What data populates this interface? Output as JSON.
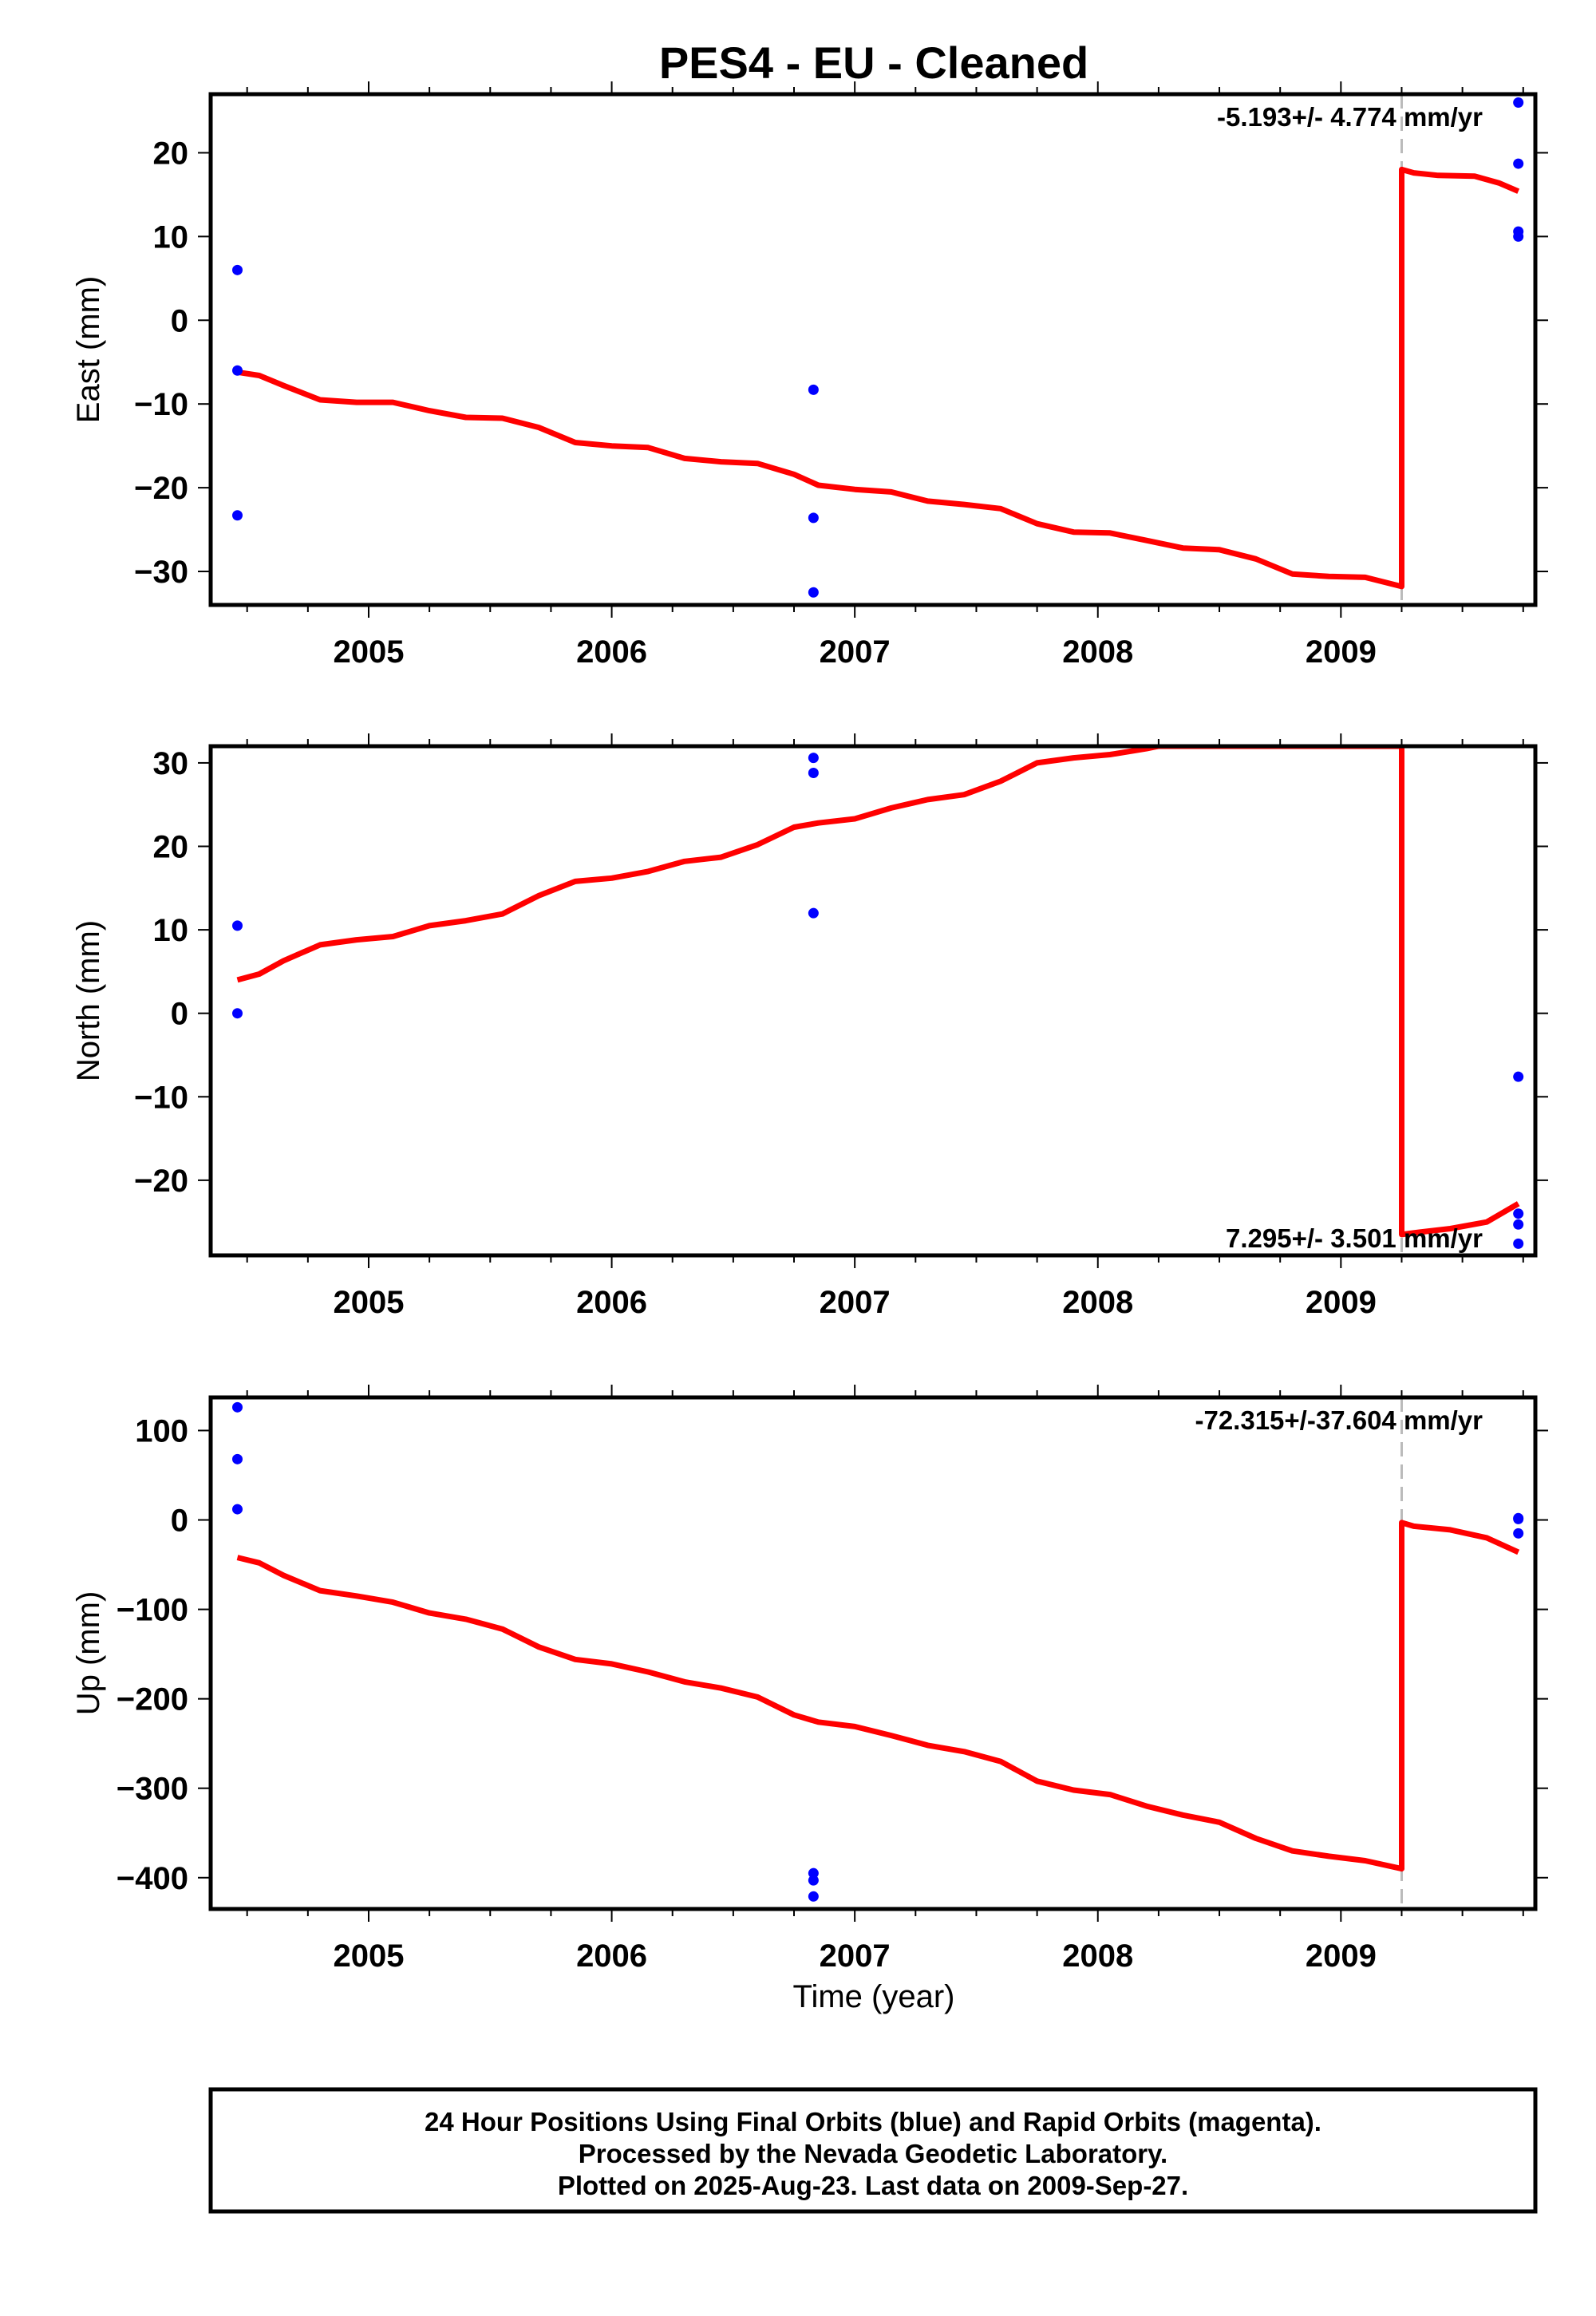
{
  "page": {
    "title": "PES4  - EU - Cleaned",
    "xlabel": "Time (year)",
    "footer": [
      "24 Hour Positions Using Final Orbits (blue) and Rapid Orbits (magenta).",
      "Processed by the Nevada Geodetic Laboratory.",
      "Plotted on 2025-Aug-23. Last data on 2009-Sep-27."
    ]
  },
  "colors": {
    "final_orbits": "#0000ff",
    "model": "#ff0000",
    "step_marker": "#bbbbbb",
    "axes": "#000000"
  },
  "chart_data": [
    {
      "type": "scatter",
      "ylabel": "East (mm)",
      "rate_label": "-5.193+/- 4.774 mm/yr",
      "rate_position": "top-right",
      "xlim": [
        2004.35,
        2009.8
      ],
      "ylim": [
        -34,
        27
      ],
      "x_ticks": [
        2005,
        2006,
        2007,
        2008,
        2009
      ],
      "y_ticks": [
        20,
        10,
        0,
        -10,
        -20,
        -30
      ],
      "step_epoch": 2009.25,
      "points": {
        "x": [
          2004.46,
          2004.46,
          2004.46,
          2006.83,
          2006.83,
          2006.83,
          2009.73,
          2009.73,
          2009.73,
          2009.73
        ],
        "y": [
          6,
          -6,
          -23.3,
          -8.3,
          -23.6,
          -32.5,
          26,
          18.7,
          10.6,
          10
        ]
      },
      "model": {
        "x": [
          2004.46,
          2004.55,
          2004.65,
          2004.8,
          2004.95,
          2005.1,
          2005.25,
          2005.4,
          2005.55,
          2005.7,
          2005.85,
          2006.0,
          2006.15,
          2006.3,
          2006.45,
          2006.6,
          2006.75,
          2006.85,
          2007.0,
          2007.15,
          2007.3,
          2007.45,
          2007.6,
          2007.75,
          2007.9,
          2008.05,
          2008.2,
          2008.35,
          2008.5,
          2008.65,
          2008.8,
          2008.95,
          2009.1,
          2009.25,
          2009.25,
          2009.3,
          2009.4,
          2009.55,
          2009.65,
          2009.73
        ],
        "y": [
          -6.2,
          -6.6,
          -7.8,
          -9.5,
          -9.8,
          -9.8,
          -10.8,
          -11.6,
          -11.7,
          -12.8,
          -14.6,
          -15.0,
          -15.2,
          -16.5,
          -16.9,
          -17.1,
          -18.4,
          -19.7,
          -20.2,
          -20.5,
          -21.6,
          -22.0,
          -22.5,
          -24.3,
          -25.3,
          -25.4,
          -26.3,
          -27.2,
          -27.4,
          -28.5,
          -30.3,
          -30.6,
          -30.7,
          -31.8,
          18.0,
          17.6,
          17.3,
          17.2,
          16.4,
          15.4
        ]
      }
    },
    {
      "type": "scatter",
      "ylabel": "North (mm)",
      "rate_label": "7.295+/- 3.501 mm/yr",
      "rate_position": "bottom-right",
      "xlim": [
        2004.35,
        2009.8
      ],
      "ylim": [
        -29,
        32
      ],
      "x_ticks": [
        2005,
        2006,
        2007,
        2008,
        2009
      ],
      "y_ticks": [
        30,
        20,
        10,
        0,
        -10,
        -20
      ],
      "step_epoch": 2009.25,
      "points": {
        "x": [
          2004.46,
          2004.46,
          2006.83,
          2006.83,
          2006.83,
          2009.73,
          2009.73,
          2009.73,
          2009.73
        ],
        "y": [
          10.5,
          0,
          30.6,
          28.8,
          12,
          -7.6,
          -24,
          -25.3,
          -27.6
        ]
      },
      "model": {
        "x": [
          2004.46,
          2004.55,
          2004.65,
          2004.8,
          2004.95,
          2005.1,
          2005.25,
          2005.4,
          2005.55,
          2005.7,
          2005.85,
          2006.0,
          2006.15,
          2006.3,
          2006.45,
          2006.6,
          2006.75,
          2006.85,
          2007.0,
          2007.15,
          2007.3,
          2007.45,
          2007.6,
          2007.75,
          2007.9,
          2008.05,
          2008.2,
          2008.25,
          2009.25,
          2009.25,
          2009.3,
          2009.45,
          2009.6,
          2009.73
        ],
        "y": [
          4.0,
          4.7,
          6.3,
          8.2,
          8.8,
          9.2,
          10.5,
          11.1,
          11.9,
          14.1,
          15.8,
          16.2,
          17.0,
          18.2,
          18.7,
          20.2,
          22.3,
          22.8,
          23.3,
          24.6,
          25.6,
          26.2,
          27.8,
          30.0,
          30.6,
          31.0,
          31.7,
          32.0,
          32.0,
          -26.5,
          -26.3,
          -25.8,
          -25.0,
          -22.8
        ]
      }
    },
    {
      "type": "scatter",
      "ylabel": "Up (mm)",
      "rate_label": "-72.315+/-37.604 mm/yr",
      "rate_position": "top-right",
      "xlim": [
        2004.35,
        2009.8
      ],
      "ylim": [
        -435,
        137
      ],
      "x_ticks": [
        2005,
        2006,
        2007,
        2008,
        2009
      ],
      "y_ticks": [
        100,
        0,
        -100,
        -200,
        -300,
        -400
      ],
      "step_epoch": 2009.25,
      "points": {
        "x": [
          2004.46,
          2004.46,
          2004.46,
          2006.83,
          2006.83,
          2006.83,
          2009.73,
          2009.73,
          2009.73
        ],
        "y": [
          126,
          68,
          12,
          -395,
          -403,
          -421,
          2,
          1,
          -15
        ]
      },
      "model": {
        "x": [
          2004.46,
          2004.55,
          2004.65,
          2004.8,
          2004.95,
          2005.1,
          2005.25,
          2005.4,
          2005.55,
          2005.7,
          2005.85,
          2006.0,
          2006.15,
          2006.3,
          2006.45,
          2006.6,
          2006.75,
          2006.85,
          2007.0,
          2007.15,
          2007.3,
          2007.45,
          2007.6,
          2007.75,
          2007.9,
          2008.05,
          2008.2,
          2008.35,
          2008.5,
          2008.65,
          2008.8,
          2008.95,
          2009.1,
          2009.25,
          2009.25,
          2009.3,
          2009.45,
          2009.6,
          2009.73
        ],
        "y": [
          -42,
          -48,
          -62,
          -79,
          -85,
          -92,
          -104,
          -111,
          -122,
          -142,
          -156,
          -161,
          -170,
          -181,
          -188,
          -198,
          -218,
          -226,
          -231,
          -241,
          -252,
          -259,
          -270,
          -292,
          -302,
          -307,
          -320,
          -330,
          -338,
          -356,
          -370,
          -376,
          -381,
          -390,
          -3,
          -7,
          -11,
          -20,
          -36
        ]
      }
    }
  ]
}
